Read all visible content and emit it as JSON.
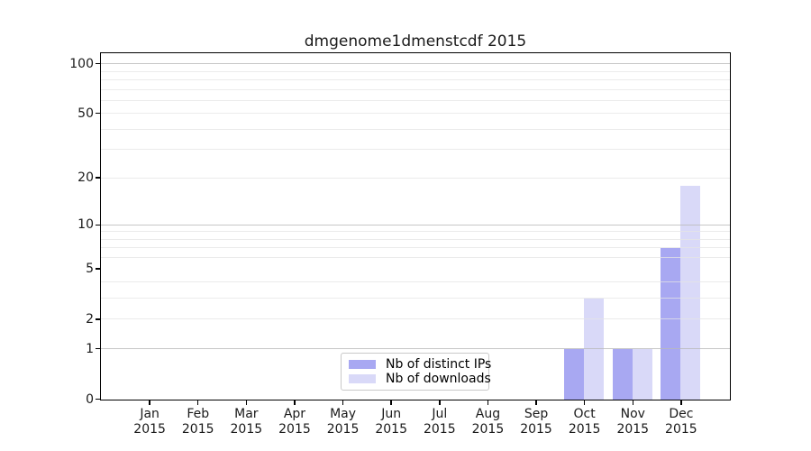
{
  "chart_data": {
    "type": "bar",
    "title": "dmgenome1dmenstcdf 2015",
    "xlabel": "",
    "ylabel": "",
    "categories": [
      "Jan",
      "Feb",
      "Mar",
      "Apr",
      "May",
      "Jun",
      "Jul",
      "Aug",
      "Sep",
      "Oct",
      "Nov",
      "Dec"
    ],
    "x_tick_second_line": "2015",
    "series": [
      {
        "name": "Nb of distinct IPs",
        "color": "#a8a8f2",
        "values": [
          0,
          0,
          0,
          0,
          0,
          0,
          0,
          0,
          0,
          1,
          1,
          7
        ]
      },
      {
        "name": "Nb of downloads",
        "color": "#d9d9f8",
        "values": [
          0,
          0,
          0,
          0,
          0,
          0,
          0,
          0,
          0,
          3,
          1,
          18
        ]
      }
    ],
    "yscale": "log1p",
    "ylim": [
      0,
      115
    ],
    "y_tick_values": [
      0,
      1,
      2,
      5,
      10,
      20,
      50,
      100
    ],
    "y_gridlines_major": [
      1,
      10,
      100
    ],
    "y_gridlines_minor": [
      2,
      3,
      4,
      6,
      7,
      8,
      9,
      20,
      30,
      40,
      50,
      60,
      70,
      80,
      90
    ],
    "grid": "horizontal",
    "legend_position": "lower center",
    "colors": {
      "grid_major": "#b9b9b9",
      "grid_minor": "#e4e4e4",
      "spine": "#000000",
      "text": "#1a1a1a",
      "background": "#ffffff"
    }
  }
}
